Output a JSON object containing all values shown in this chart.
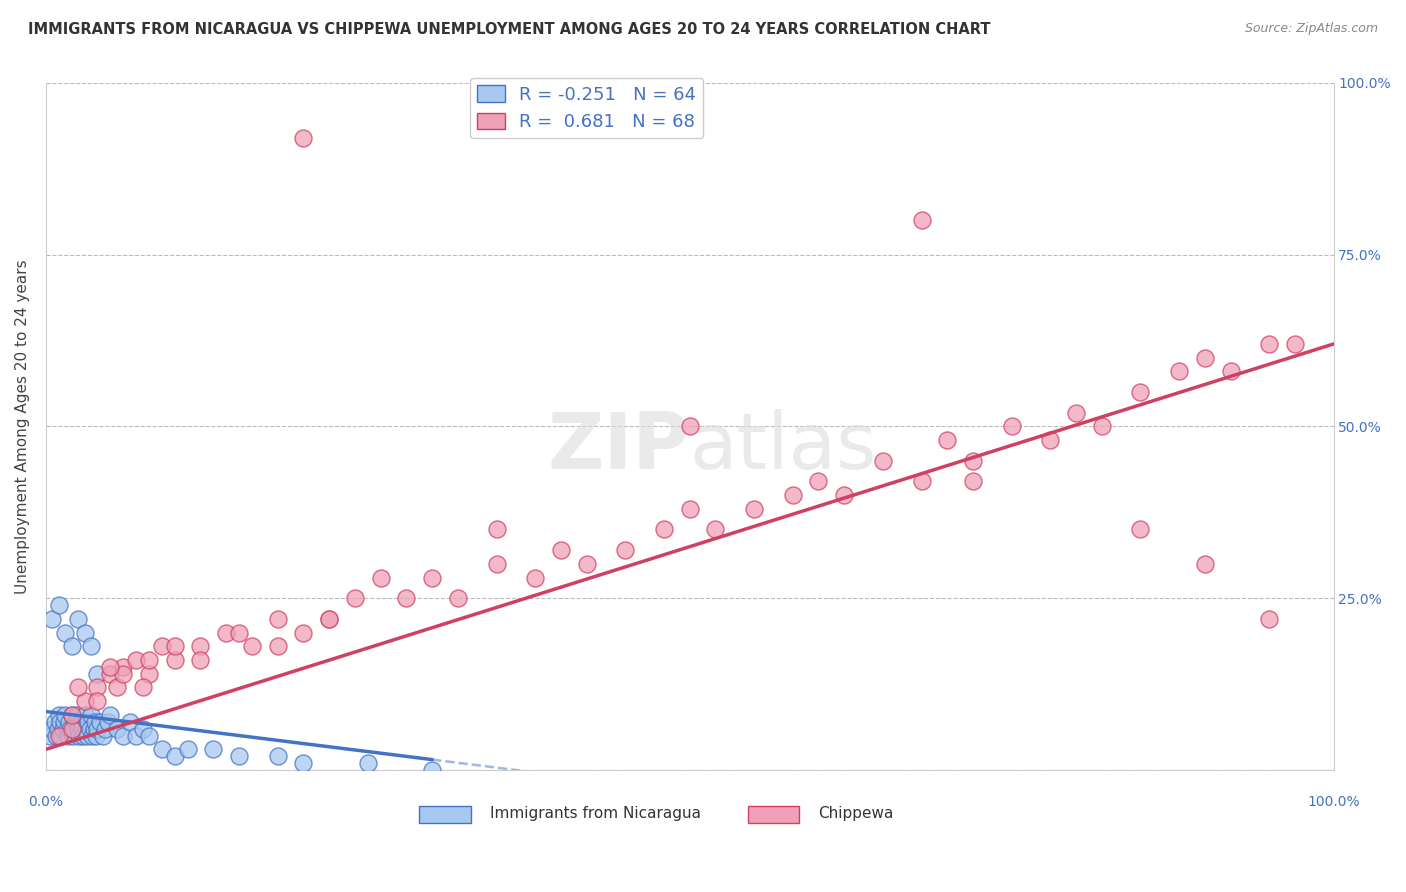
{
  "title": "IMMIGRANTS FROM NICARAGUA VS CHIPPEWA UNEMPLOYMENT AMONG AGES 20 TO 24 YEARS CORRELATION CHART",
  "source": "Source: ZipAtlas.com",
  "ylabel": "Unemployment Among Ages 20 to 24 years",
  "xlim": [
    0,
    100
  ],
  "ylim": [
    0,
    100
  ],
  "color_blue": "#A8C8F0",
  "color_pink": "#F0A0B8",
  "color_line_blue": "#4472C4",
  "color_line_pink": "#D04060",
  "watermark_zip": "ZIP",
  "watermark_atlas": "atlas",
  "legend_label1": "Immigrants from Nicaragua",
  "legend_label2": "Chippewa",
  "legend_r1_val": "-0.251",
  "legend_n1_val": "64",
  "legend_r2_val": "0.681",
  "legend_n2_val": "68",
  "blue_x": [
    0.3,
    0.5,
    0.7,
    0.8,
    0.9,
    1.0,
    1.1,
    1.2,
    1.3,
    1.4,
    1.5,
    1.6,
    1.7,
    1.8,
    1.9,
    2.0,
    2.1,
    2.2,
    2.3,
    2.4,
    2.5,
    2.6,
    2.7,
    2.8,
    2.9,
    3.0,
    3.1,
    3.2,
    3.3,
    3.4,
    3.5,
    3.6,
    3.7,
    3.8,
    3.9,
    4.0,
    4.2,
    4.4,
    4.6,
    4.8,
    5.0,
    5.5,
    6.0,
    6.5,
    7.0,
    7.5,
    8.0,
    9.0,
    10.0,
    11.0,
    13.0,
    15.0,
    18.0,
    20.0,
    25.0,
    30.0,
    0.5,
    1.0,
    1.5,
    2.0,
    2.5,
    3.0,
    3.5,
    4.0
  ],
  "blue_y": [
    5,
    6,
    7,
    5,
    6,
    8,
    7,
    5,
    6,
    7,
    8,
    6,
    5,
    7,
    6,
    8,
    5,
    6,
    7,
    8,
    6,
    5,
    7,
    6,
    5,
    8,
    6,
    5,
    7,
    6,
    8,
    5,
    6,
    7,
    5,
    6,
    7,
    5,
    6,
    7,
    8,
    6,
    5,
    7,
    5,
    6,
    5,
    3,
    2,
    3,
    3,
    2,
    2,
    1,
    1,
    0,
    22,
    24,
    20,
    18,
    22,
    20,
    18,
    14
  ],
  "pink_x": [
    1.0,
    2.0,
    3.0,
    4.0,
    5.0,
    5.5,
    6.0,
    7.0,
    8.0,
    9.0,
    10.0,
    12.0,
    14.0,
    16.0,
    18.0,
    20.0,
    22.0,
    24.0,
    26.0,
    28.0,
    30.0,
    32.0,
    35.0,
    38.0,
    40.0,
    42.0,
    45.0,
    48.0,
    50.0,
    52.0,
    55.0,
    58.0,
    60.0,
    62.0,
    65.0,
    68.0,
    70.0,
    72.0,
    75.0,
    78.0,
    80.0,
    82.0,
    85.0,
    88.0,
    90.0,
    92.0,
    95.0,
    97.0,
    2.0,
    4.0,
    6.0,
    8.0,
    10.0,
    12.0,
    15.0,
    18.0,
    22.0,
    2.5,
    5.0,
    7.5,
    72.0,
    85.0,
    90.0,
    95.0,
    68.0,
    50.0,
    35.0,
    20.0
  ],
  "pink_y": [
    5,
    6,
    10,
    12,
    14,
    12,
    15,
    16,
    14,
    18,
    16,
    18,
    20,
    18,
    22,
    20,
    22,
    25,
    28,
    25,
    28,
    25,
    30,
    28,
    32,
    30,
    32,
    35,
    38,
    35,
    38,
    40,
    42,
    40,
    45,
    42,
    48,
    45,
    50,
    48,
    52,
    50,
    55,
    58,
    60,
    58,
    62,
    62,
    8,
    10,
    14,
    16,
    18,
    16,
    20,
    18,
    22,
    12,
    15,
    12,
    42,
    35,
    30,
    22,
    80,
    50,
    35,
    92
  ],
  "blue_reg_x0": 0,
  "blue_reg_y0": 8.5,
  "blue_reg_x1": 30,
  "blue_reg_y1": 1.5,
  "blue_dash_x1": 45,
  "blue_dash_y1": -2.0,
  "pink_reg_x0": 0,
  "pink_reg_y0": 3,
  "pink_reg_x1": 100,
  "pink_reg_y1": 62
}
